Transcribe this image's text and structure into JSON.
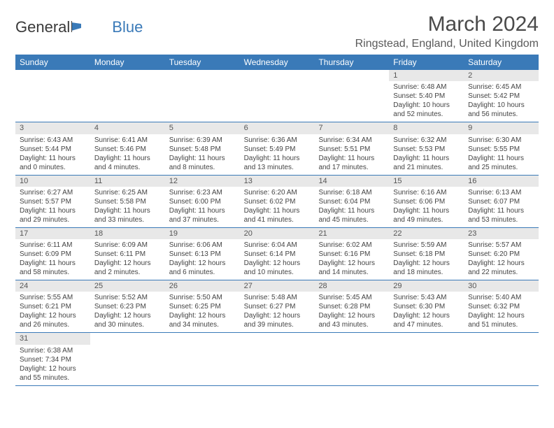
{
  "logo": {
    "general": "General",
    "blue": "Blue"
  },
  "header": {
    "month_title": "March 2024",
    "location": "Ringstead, England, United Kingdom"
  },
  "colors": {
    "header_bg": "#3a7ab8",
    "header_text": "#ffffff",
    "daynum_bg": "#e8e8e8",
    "border": "#3a7ab8"
  },
  "day_names": [
    "Sunday",
    "Monday",
    "Tuesday",
    "Wednesday",
    "Thursday",
    "Friday",
    "Saturday"
  ],
  "weeks": [
    [
      {
        "empty": true
      },
      {
        "empty": true
      },
      {
        "empty": true
      },
      {
        "empty": true
      },
      {
        "empty": true
      },
      {
        "n": "1",
        "sr": "Sunrise: 6:48 AM",
        "ss": "Sunset: 5:40 PM",
        "dl": "Daylight: 10 hours and 52 minutes."
      },
      {
        "n": "2",
        "sr": "Sunrise: 6:45 AM",
        "ss": "Sunset: 5:42 PM",
        "dl": "Daylight: 10 hours and 56 minutes."
      }
    ],
    [
      {
        "n": "3",
        "sr": "Sunrise: 6:43 AM",
        "ss": "Sunset: 5:44 PM",
        "dl": "Daylight: 11 hours and 0 minutes."
      },
      {
        "n": "4",
        "sr": "Sunrise: 6:41 AM",
        "ss": "Sunset: 5:46 PM",
        "dl": "Daylight: 11 hours and 4 minutes."
      },
      {
        "n": "5",
        "sr": "Sunrise: 6:39 AM",
        "ss": "Sunset: 5:48 PM",
        "dl": "Daylight: 11 hours and 8 minutes."
      },
      {
        "n": "6",
        "sr": "Sunrise: 6:36 AM",
        "ss": "Sunset: 5:49 PM",
        "dl": "Daylight: 11 hours and 13 minutes."
      },
      {
        "n": "7",
        "sr": "Sunrise: 6:34 AM",
        "ss": "Sunset: 5:51 PM",
        "dl": "Daylight: 11 hours and 17 minutes."
      },
      {
        "n": "8",
        "sr": "Sunrise: 6:32 AM",
        "ss": "Sunset: 5:53 PM",
        "dl": "Daylight: 11 hours and 21 minutes."
      },
      {
        "n": "9",
        "sr": "Sunrise: 6:30 AM",
        "ss": "Sunset: 5:55 PM",
        "dl": "Daylight: 11 hours and 25 minutes."
      }
    ],
    [
      {
        "n": "10",
        "sr": "Sunrise: 6:27 AM",
        "ss": "Sunset: 5:57 PM",
        "dl": "Daylight: 11 hours and 29 minutes."
      },
      {
        "n": "11",
        "sr": "Sunrise: 6:25 AM",
        "ss": "Sunset: 5:58 PM",
        "dl": "Daylight: 11 hours and 33 minutes."
      },
      {
        "n": "12",
        "sr": "Sunrise: 6:23 AM",
        "ss": "Sunset: 6:00 PM",
        "dl": "Daylight: 11 hours and 37 minutes."
      },
      {
        "n": "13",
        "sr": "Sunrise: 6:20 AM",
        "ss": "Sunset: 6:02 PM",
        "dl": "Daylight: 11 hours and 41 minutes."
      },
      {
        "n": "14",
        "sr": "Sunrise: 6:18 AM",
        "ss": "Sunset: 6:04 PM",
        "dl": "Daylight: 11 hours and 45 minutes."
      },
      {
        "n": "15",
        "sr": "Sunrise: 6:16 AM",
        "ss": "Sunset: 6:06 PM",
        "dl": "Daylight: 11 hours and 49 minutes."
      },
      {
        "n": "16",
        "sr": "Sunrise: 6:13 AM",
        "ss": "Sunset: 6:07 PM",
        "dl": "Daylight: 11 hours and 53 minutes."
      }
    ],
    [
      {
        "n": "17",
        "sr": "Sunrise: 6:11 AM",
        "ss": "Sunset: 6:09 PM",
        "dl": "Daylight: 11 hours and 58 minutes."
      },
      {
        "n": "18",
        "sr": "Sunrise: 6:09 AM",
        "ss": "Sunset: 6:11 PM",
        "dl": "Daylight: 12 hours and 2 minutes."
      },
      {
        "n": "19",
        "sr": "Sunrise: 6:06 AM",
        "ss": "Sunset: 6:13 PM",
        "dl": "Daylight: 12 hours and 6 minutes."
      },
      {
        "n": "20",
        "sr": "Sunrise: 6:04 AM",
        "ss": "Sunset: 6:14 PM",
        "dl": "Daylight: 12 hours and 10 minutes."
      },
      {
        "n": "21",
        "sr": "Sunrise: 6:02 AM",
        "ss": "Sunset: 6:16 PM",
        "dl": "Daylight: 12 hours and 14 minutes."
      },
      {
        "n": "22",
        "sr": "Sunrise: 5:59 AM",
        "ss": "Sunset: 6:18 PM",
        "dl": "Daylight: 12 hours and 18 minutes."
      },
      {
        "n": "23",
        "sr": "Sunrise: 5:57 AM",
        "ss": "Sunset: 6:20 PM",
        "dl": "Daylight: 12 hours and 22 minutes."
      }
    ],
    [
      {
        "n": "24",
        "sr": "Sunrise: 5:55 AM",
        "ss": "Sunset: 6:21 PM",
        "dl": "Daylight: 12 hours and 26 minutes."
      },
      {
        "n": "25",
        "sr": "Sunrise: 5:52 AM",
        "ss": "Sunset: 6:23 PM",
        "dl": "Daylight: 12 hours and 30 minutes."
      },
      {
        "n": "26",
        "sr": "Sunrise: 5:50 AM",
        "ss": "Sunset: 6:25 PM",
        "dl": "Daylight: 12 hours and 34 minutes."
      },
      {
        "n": "27",
        "sr": "Sunrise: 5:48 AM",
        "ss": "Sunset: 6:27 PM",
        "dl": "Daylight: 12 hours and 39 minutes."
      },
      {
        "n": "28",
        "sr": "Sunrise: 5:45 AM",
        "ss": "Sunset: 6:28 PM",
        "dl": "Daylight: 12 hours and 43 minutes."
      },
      {
        "n": "29",
        "sr": "Sunrise: 5:43 AM",
        "ss": "Sunset: 6:30 PM",
        "dl": "Daylight: 12 hours and 47 minutes."
      },
      {
        "n": "30",
        "sr": "Sunrise: 5:40 AM",
        "ss": "Sunset: 6:32 PM",
        "dl": "Daylight: 12 hours and 51 minutes."
      }
    ],
    [
      {
        "n": "31",
        "sr": "Sunrise: 6:38 AM",
        "ss": "Sunset: 7:34 PM",
        "dl": "Daylight: 12 hours and 55 minutes."
      },
      {
        "empty": true
      },
      {
        "empty": true
      },
      {
        "empty": true
      },
      {
        "empty": true
      },
      {
        "empty": true
      },
      {
        "empty": true
      }
    ]
  ]
}
